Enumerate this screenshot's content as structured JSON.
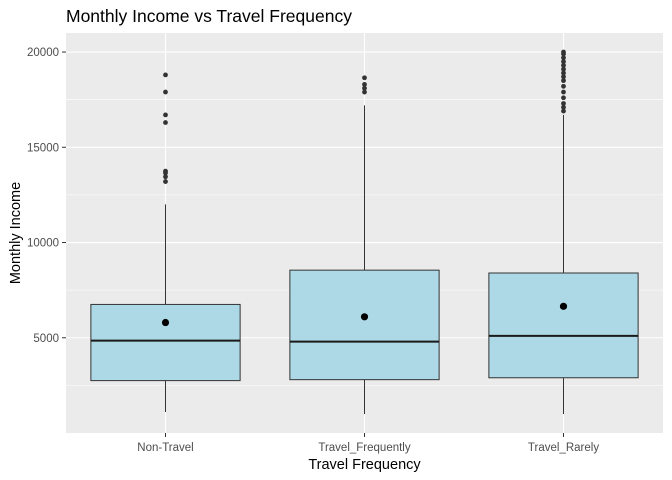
{
  "chart_data": {
    "type": "boxplot",
    "title": "Monthly Income vs Travel Frequency",
    "xlabel": "Travel Frequency",
    "ylabel": "Monthly Income",
    "categories": [
      "Non-Travel",
      "Travel_Frequently",
      "Travel_Rarely"
    ],
    "ylim": [
      0,
      21000
    ],
    "yticks": [
      5000,
      10000,
      15000,
      20000
    ],
    "grid": true,
    "legend": "none",
    "box_color": "#add8e6",
    "panel_color": "#ebebeb",
    "boxes": [
      {
        "category": "Non-Travel",
        "min": 1100,
        "q1": 2750,
        "median": 4850,
        "q3": 6750,
        "max": 12000,
        "mean": 5800,
        "outliers": [
          13200,
          13450,
          13650,
          13750,
          16300,
          16700,
          17900,
          18800
        ]
      },
      {
        "category": "Travel_Frequently",
        "min": 1000,
        "q1": 2800,
        "median": 4800,
        "q3": 8550,
        "max": 17200,
        "mean": 6100,
        "outliers": [
          17900,
          18100,
          18300,
          18650
        ]
      },
      {
        "category": "Travel_Rarely",
        "min": 1000,
        "q1": 2900,
        "median": 5100,
        "q3": 8400,
        "max": 16700,
        "mean": 6650,
        "outliers": [
          16900,
          17100,
          17300,
          17600,
          17900,
          18200,
          18500,
          18700,
          18900,
          19100,
          19300,
          19500,
          19700,
          19900,
          20000
        ]
      }
    ]
  }
}
